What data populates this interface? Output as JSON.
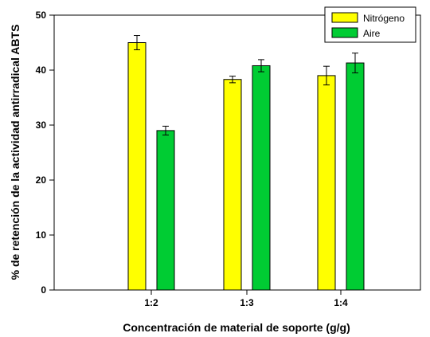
{
  "chart_data": {
    "type": "bar",
    "title": "",
    "xlabel": "Concentración de material de soporte (g/g)",
    "ylabel": "% de retención de la actividad antirradical ABTS",
    "categories": [
      "1:2",
      "1:3",
      "1:4"
    ],
    "ylim": [
      0,
      50
    ],
    "yticks": [
      "0",
      "10",
      "20",
      "30",
      "40",
      "50"
    ],
    "grid": false,
    "legend_position": "top-right",
    "series": [
      {
        "name": "Nitrógeno",
        "color": "#ffff00",
        "values": [
          45.0,
          38.3,
          39.0
        ],
        "errors": [
          1.3,
          0.6,
          1.7
        ]
      },
      {
        "name": "Aire",
        "color": "#00cc33",
        "values": [
          29.0,
          40.8,
          41.3
        ],
        "errors": [
          0.8,
          1.1,
          1.8
        ]
      }
    ]
  }
}
